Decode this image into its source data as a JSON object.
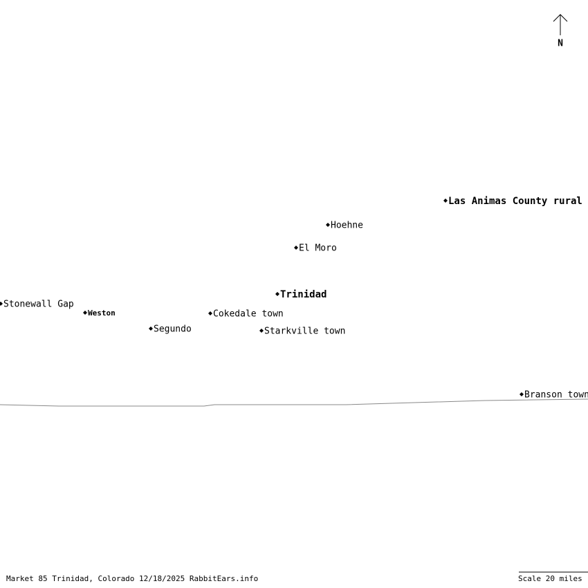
{
  "places": [
    {
      "name": "Las Animas County rural"
    },
    {
      "name": "Hoehne"
    },
    {
      "name": "El Moro"
    },
    {
      "name": "Trinidad"
    },
    {
      "name": "Stonewall Gap"
    },
    {
      "name": "Weston"
    },
    {
      "name": "Cokedale town"
    },
    {
      "name": "Segundo"
    },
    {
      "name": "Starkville town"
    },
    {
      "name": "Branson town"
    }
  ],
  "north": "N",
  "footer": "Market 85 Trinidad, Colorado 12/18/2025 RabbitEars.info",
  "scale": "Scale 20 miles"
}
